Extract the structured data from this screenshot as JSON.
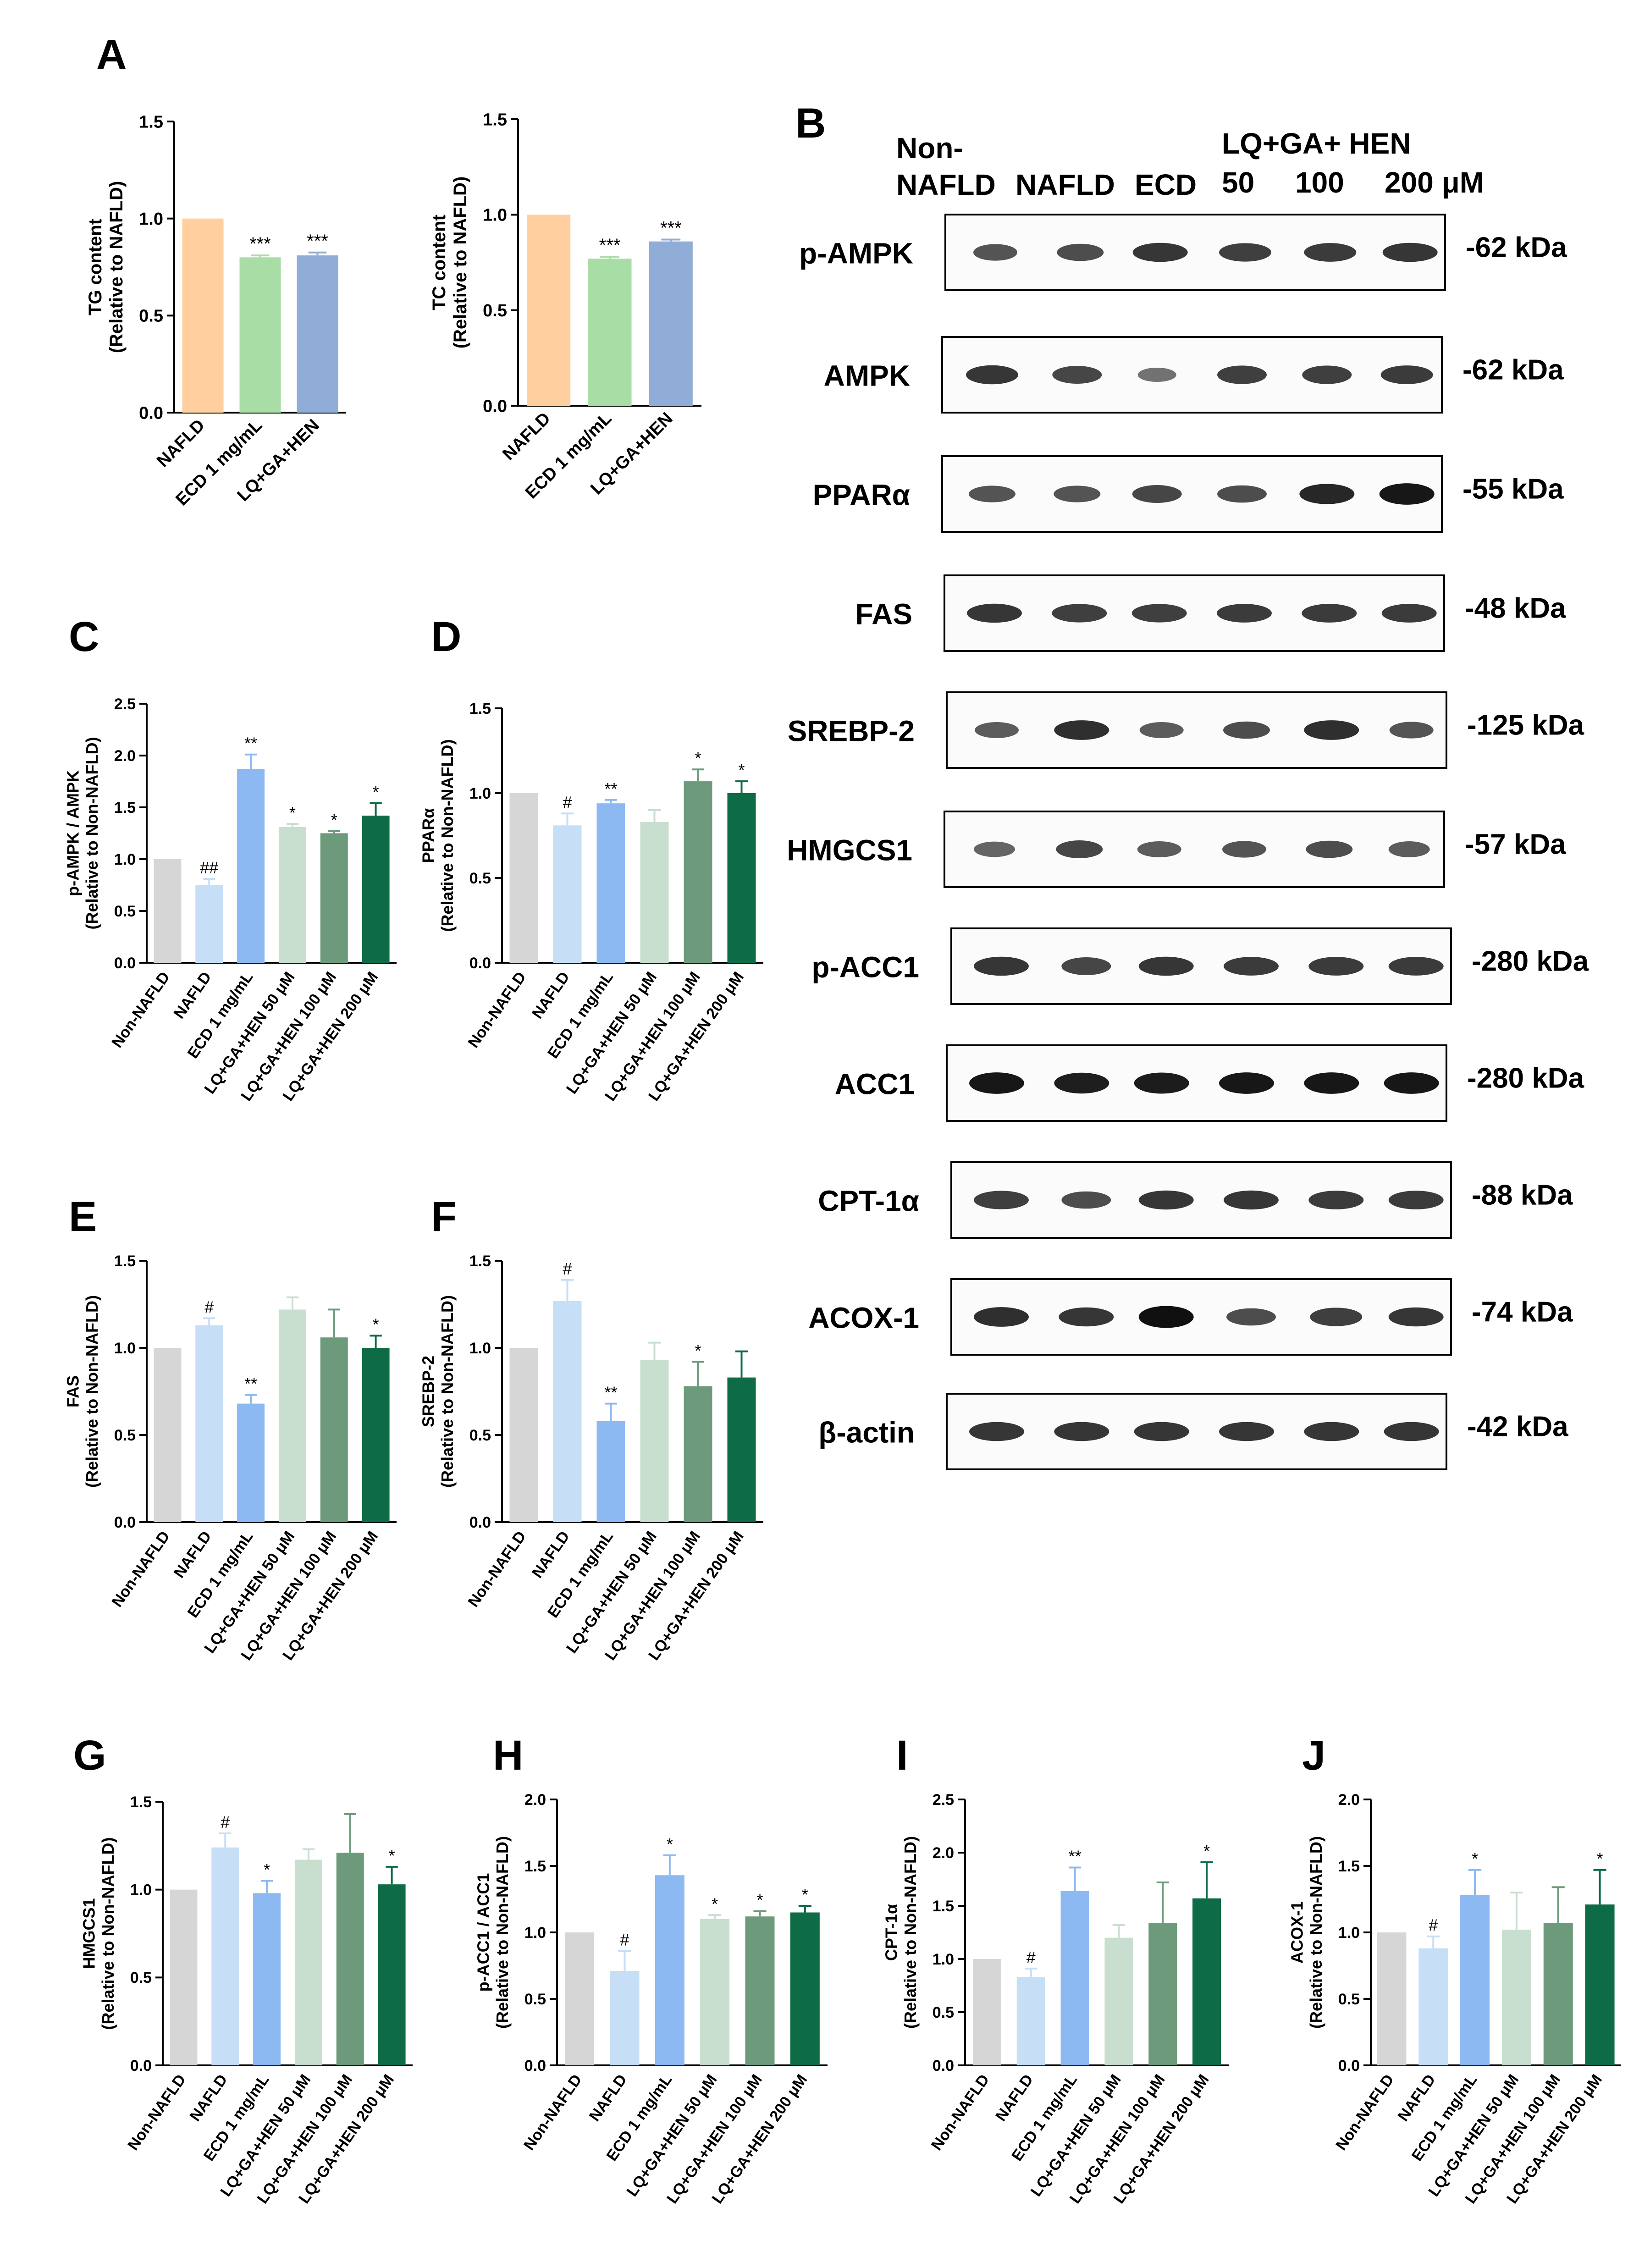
{
  "figure": {
    "background": "#ffffff"
  },
  "colors": {
    "nafld_orange": "#FFCF9F",
    "ecd_green_light": "#A9DDA6",
    "lq_blue": "#8FADD6",
    "non": "#D6D6D6",
    "nafld": "#C7DEF7",
    "ecd": "#8DB9F2",
    "lq50": "#C8DFCF",
    "lq100": "#6E9A7C",
    "lq200": "#0D6B45",
    "band": "#101010"
  },
  "panel_labels": {
    "A": "A",
    "B": "B",
    "C": "C",
    "D": "D",
    "E": "E",
    "F": "F",
    "G": "G",
    "H": "H",
    "I": "I",
    "J": "J"
  },
  "chart_data": [
    {
      "id": "A1",
      "panel": "A",
      "type": "bar",
      "ylabel": [
        "TG content",
        "(Relative to NAFLD)"
      ],
      "ylim": [
        0,
        1.5
      ],
      "yticks": [
        0,
        0.5,
        1.0,
        1.5
      ],
      "ytick_labels": [
        "0.0",
        "0.5",
        "1.0",
        "1.5"
      ],
      "categories": [
        "NAFLD",
        "ECD 1 mg/mL",
        "LQ+GA+HEN"
      ],
      "values": [
        1.0,
        0.8,
        0.81
      ],
      "errors": [
        0,
        0.01,
        0.015
      ],
      "annotations": [
        "",
        "***",
        "***"
      ],
      "color_keys": [
        "nafld_orange",
        "ecd_green_light",
        "lq_blue"
      ]
    },
    {
      "id": "A2",
      "panel": "A",
      "type": "bar",
      "ylabel": [
        "TC content",
        "(Relative to NAFLD)"
      ],
      "ylim": [
        0,
        1.5
      ],
      "yticks": [
        0,
        0.5,
        1.0,
        1.5
      ],
      "ytick_labels": [
        "0.0",
        "0.5",
        "1.0",
        "1.5"
      ],
      "categories": [
        "NAFLD",
        "ECD 1 mg/mL",
        "LQ+GA+HEN"
      ],
      "values": [
        1.0,
        0.77,
        0.86
      ],
      "errors": [
        0,
        0.01,
        0.01
      ],
      "annotations": [
        "",
        "***",
        "***"
      ],
      "color_keys": [
        "nafld_orange",
        "ecd_green_light",
        "lq_blue"
      ]
    },
    {
      "id": "C",
      "panel": "C",
      "type": "bar",
      "ylabel": [
        "p-AMPK / AMPK",
        "(Relative to Non-NAFLD)"
      ],
      "ylim": [
        0,
        2.5
      ],
      "yticks": [
        0,
        0.5,
        1.0,
        1.5,
        2.0,
        2.5
      ],
      "ytick_labels": [
        "0.0",
        "0.5",
        "1.0",
        "1.5",
        "2.0",
        "2.5"
      ],
      "categories": [
        "Non-NAFLD",
        "NAFLD",
        "ECD 1 mg/mL",
        "LQ+GA+HEN 50 μM",
        "LQ+GA+HEN 100 μM",
        "LQ+GA+HEN 200 μM"
      ],
      "values": [
        1.0,
        0.75,
        1.87,
        1.31,
        1.25,
        1.42
      ],
      "errors": [
        0,
        0.06,
        0.14,
        0.03,
        0.02,
        0.12
      ],
      "annotations": [
        "",
        "##",
        "**",
        "*",
        "*",
        "*"
      ],
      "color_keys": [
        "non",
        "nafld",
        "ecd",
        "lq50",
        "lq100",
        "lq200"
      ]
    },
    {
      "id": "D",
      "panel": "D",
      "type": "bar",
      "ylabel": [
        "PPARα",
        "(Relative to Non-NAFLD)"
      ],
      "ylim": [
        0,
        1.5
      ],
      "yticks": [
        0,
        0.5,
        1.0,
        1.5
      ],
      "ytick_labels": [
        "0.0",
        "0.5",
        "1.0",
        "1.5"
      ],
      "categories": [
        "Non-NAFLD",
        "NAFLD",
        "ECD 1 mg/mL",
        "LQ+GA+HEN 50 μM",
        "LQ+GA+HEN 100 μM",
        "LQ+GA+HEN 200 μM"
      ],
      "values": [
        1.0,
        0.81,
        0.94,
        0.83,
        1.07,
        1.0
      ],
      "errors": [
        0,
        0.07,
        0.02,
        0.07,
        0.07,
        0.07
      ],
      "annotations": [
        "",
        "#",
        "**",
        "",
        "*",
        "*"
      ],
      "color_keys": [
        "non",
        "nafld",
        "ecd",
        "lq50",
        "lq100",
        "lq200"
      ]
    },
    {
      "id": "E",
      "panel": "E",
      "type": "bar",
      "ylabel": [
        "FAS",
        "(Relative to Non-NAFLD)"
      ],
      "ylim": [
        0,
        1.5
      ],
      "yticks": [
        0,
        0.5,
        1.0,
        1.5
      ],
      "ytick_labels": [
        "0.0",
        "0.5",
        "1.0",
        "1.5"
      ],
      "categories": [
        "Non-NAFLD",
        "NAFLD",
        "ECD 1 mg/mL",
        "LQ+GA+HEN 50 μM",
        "LQ+GA+HEN 100 μM",
        "LQ+GA+HEN 200 μM"
      ],
      "values": [
        1.0,
        1.13,
        0.68,
        1.22,
        1.06,
        1.0
      ],
      "errors": [
        0,
        0.04,
        0.05,
        0.07,
        0.16,
        0.07
      ],
      "annotations": [
        "",
        "#",
        "**",
        "",
        "",
        "*"
      ],
      "color_keys": [
        "non",
        "nafld",
        "ecd",
        "lq50",
        "lq100",
        "lq200"
      ]
    },
    {
      "id": "F",
      "panel": "F",
      "type": "bar",
      "ylabel": [
        "SREBP-2",
        "(Relative to Non-NAFLD)"
      ],
      "ylim": [
        0,
        1.5
      ],
      "yticks": [
        0,
        0.5,
        1.0,
        1.5
      ],
      "ytick_labels": [
        "0.0",
        "0.5",
        "1.0",
        "1.5"
      ],
      "categories": [
        "Non-NAFLD",
        "NAFLD",
        "ECD 1 mg/mL",
        "LQ+GA+HEN 50 μM",
        "LQ+GA+HEN 100 μM",
        "LQ+GA+HEN 200 μM"
      ],
      "values": [
        1.0,
        1.27,
        0.58,
        0.93,
        0.78,
        0.83
      ],
      "errors": [
        0,
        0.12,
        0.1,
        0.1,
        0.14,
        0.15
      ],
      "annotations": [
        "",
        "#",
        "**",
        "",
        "*",
        ""
      ],
      "color_keys": [
        "non",
        "nafld",
        "ecd",
        "lq50",
        "lq100",
        "lq200"
      ]
    },
    {
      "id": "G",
      "panel": "G",
      "type": "bar",
      "ylabel": [
        "HMGCS1",
        "(Relative to Non-NAFLD)"
      ],
      "ylim": [
        0,
        1.5
      ],
      "yticks": [
        0,
        0.5,
        1.0,
        1.5
      ],
      "ytick_labels": [
        "0.0",
        "0.5",
        "1.0",
        "1.5"
      ],
      "categories": [
        "Non-NAFLD",
        "NAFLD",
        "ECD 1 mg/mL",
        "LQ+GA+HEN 50 μM",
        "LQ+GA+HEN 100 μM",
        "LQ+GA+HEN 200 μM"
      ],
      "values": [
        1.0,
        1.24,
        0.98,
        1.17,
        1.21,
        1.03
      ],
      "errors": [
        0,
        0.08,
        0.07,
        0.06,
        0.22,
        0.1
      ],
      "annotations": [
        "",
        "#",
        "*",
        "",
        "",
        "*"
      ],
      "color_keys": [
        "non",
        "nafld",
        "ecd",
        "lq50",
        "lq100",
        "lq200"
      ]
    },
    {
      "id": "H",
      "panel": "H",
      "type": "bar",
      "ylabel": [
        "p-ACC1 / ACC1",
        "(Relative to Non-NAFLD)"
      ],
      "ylim": [
        0,
        2.0
      ],
      "yticks": [
        0,
        0.5,
        1.0,
        1.5,
        2.0
      ],
      "ytick_labels": [
        "0.0",
        "0.5",
        "1.0",
        "1.5",
        "2.0"
      ],
      "categories": [
        "Non-NAFLD",
        "NAFLD",
        "ECD 1 mg/mL",
        "LQ+GA+HEN 50 μM",
        "LQ+GA+HEN 100 μM",
        "LQ+GA+HEN 200 μM"
      ],
      "values": [
        1.0,
        0.71,
        1.43,
        1.1,
        1.12,
        1.15
      ],
      "errors": [
        0,
        0.15,
        0.15,
        0.03,
        0.04,
        0.05
      ],
      "annotations": [
        "",
        "#",
        "*",
        "*",
        "*",
        "*"
      ],
      "color_keys": [
        "non",
        "nafld",
        "ecd",
        "lq50",
        "lq100",
        "lq200"
      ]
    },
    {
      "id": "I",
      "panel": "I",
      "type": "bar",
      "ylabel": [
        "CPT-1α",
        "(Relative to Non-NAFLD)"
      ],
      "ylim": [
        0,
        2.5
      ],
      "yticks": [
        0,
        0.5,
        1.0,
        1.5,
        2.0,
        2.5
      ],
      "ytick_labels": [
        "0.0",
        "0.5",
        "1.0",
        "1.5",
        "2.0",
        "2.5"
      ],
      "categories": [
        "Non-NAFLD",
        "NAFLD",
        "ECD 1 mg/mL",
        "LQ+GA+HEN 50 μM",
        "LQ+GA+HEN 100 μM",
        "LQ+GA+HEN 200 μM"
      ],
      "values": [
        1.0,
        0.83,
        1.64,
        1.2,
        1.34,
        1.57
      ],
      "errors": [
        0,
        0.08,
        0.22,
        0.12,
        0.38,
        0.34
      ],
      "annotations": [
        "",
        "#",
        "**",
        "",
        "",
        "*"
      ],
      "color_keys": [
        "non",
        "nafld",
        "ecd",
        "lq50",
        "lq100",
        "lq200"
      ]
    },
    {
      "id": "J",
      "panel": "J",
      "type": "bar",
      "ylabel": [
        "ACOX-1",
        "(Relative to Non-NAFLD)"
      ],
      "ylim": [
        0,
        2.0
      ],
      "yticks": [
        0,
        0.5,
        1.0,
        1.5,
        2.0
      ],
      "ytick_labels": [
        "0.0",
        "0.5",
        "1.0",
        "1.5",
        "2.0"
      ],
      "categories": [
        "Non-NAFLD",
        "NAFLD",
        "ECD 1 mg/mL",
        "LQ+GA+HEN 50 μM",
        "LQ+GA+HEN 100 μM",
        "LQ+GA+HEN 200 μM"
      ],
      "values": [
        1.0,
        0.88,
        1.28,
        1.02,
        1.07,
        1.21
      ],
      "errors": [
        0,
        0.09,
        0.19,
        0.28,
        0.27,
        0.26
      ],
      "annotations": [
        "",
        "#",
        "*",
        "",
        "",
        "*"
      ],
      "color_keys": [
        "non",
        "nafld",
        "ecd",
        "lq50",
        "lq100",
        "lq200"
      ]
    }
  ],
  "western_blot": {
    "header": {
      "non": "Non-",
      "nafld_line2": "NAFLD",
      "nafld": "NAFLD",
      "ecd": "ECD",
      "lq_group": "LQ+GA+ HEN",
      "d50": "50",
      "d100": "100",
      "d200": "200 μM"
    },
    "rows": [
      {
        "protein": "p-AMPK",
        "mw": "-62 kDa",
        "bands": [
          [
            0.55,
            0.8
          ],
          [
            0.6,
            0.85
          ],
          [
            0.75,
            1.0
          ],
          [
            0.7,
            0.95
          ],
          [
            0.72,
            0.95
          ],
          [
            0.75,
            1.0
          ]
        ]
      },
      {
        "protein": "AMPK",
        "mw": "-62 kDa",
        "bands": [
          [
            0.75,
            0.95
          ],
          [
            0.65,
            0.9
          ],
          [
            0.35,
            0.7
          ],
          [
            0.7,
            0.9
          ],
          [
            0.7,
            0.9
          ],
          [
            0.72,
            0.95
          ]
        ]
      },
      {
        "protein": "PPARα",
        "mw": "-55 kDa",
        "bands": [
          [
            0.55,
            0.85
          ],
          [
            0.55,
            0.85
          ],
          [
            0.65,
            0.9
          ],
          [
            0.6,
            0.9
          ],
          [
            0.85,
            1.0
          ],
          [
            0.95,
            1.0
          ]
        ]
      },
      {
        "protein": "FAS",
        "mw": "-48 kDa",
        "bands": [
          [
            0.75,
            1.0
          ],
          [
            0.7,
            1.0
          ],
          [
            0.7,
            1.0
          ],
          [
            0.72,
            1.0
          ],
          [
            0.72,
            1.0
          ],
          [
            0.72,
            1.0
          ]
        ]
      },
      {
        "protein": "SREBP-2",
        "mw": "-125 kDa",
        "bands": [
          [
            0.5,
            0.8
          ],
          [
            0.8,
            1.0
          ],
          [
            0.5,
            0.8
          ],
          [
            0.6,
            0.85
          ],
          [
            0.8,
            1.0
          ],
          [
            0.55,
            0.8
          ]
        ]
      },
      {
        "protein": "HMGCS1",
        "mw": "-57 kDa",
        "bands": [
          [
            0.45,
            0.75
          ],
          [
            0.65,
            0.85
          ],
          [
            0.5,
            0.8
          ],
          [
            0.55,
            0.8
          ],
          [
            0.6,
            0.85
          ],
          [
            0.5,
            0.75
          ]
        ]
      },
      {
        "protein": "p-ACC1",
        "mw": "-280 kDa",
        "bands": [
          [
            0.75,
            1.0
          ],
          [
            0.65,
            0.9
          ],
          [
            0.75,
            1.0
          ],
          [
            0.72,
            1.0
          ],
          [
            0.72,
            1.0
          ],
          [
            0.72,
            1.0
          ]
        ]
      },
      {
        "protein": "ACC1",
        "mw": "-280 kDa",
        "bands": [
          [
            0.95,
            1.0
          ],
          [
            0.9,
            1.0
          ],
          [
            0.92,
            1.0
          ],
          [
            0.95,
            1.0
          ],
          [
            0.95,
            1.0
          ],
          [
            0.95,
            1.0
          ]
        ]
      },
      {
        "protein": "CPT-1α",
        "mw": "-88 kDa",
        "bands": [
          [
            0.7,
            1.0
          ],
          [
            0.6,
            0.9
          ],
          [
            0.75,
            1.0
          ],
          [
            0.75,
            1.0
          ],
          [
            0.72,
            1.0
          ],
          [
            0.72,
            1.0
          ]
        ]
      },
      {
        "protein": "ACOX-1",
        "mw": "-74 kDa",
        "bands": [
          [
            0.8,
            1.0
          ],
          [
            0.75,
            1.0
          ],
          [
            1.0,
            1.0
          ],
          [
            0.6,
            0.9
          ],
          [
            0.7,
            0.95
          ],
          [
            0.75,
            1.0
          ]
        ]
      },
      {
        "protein": "β-actin",
        "mw": "-42 kDa",
        "bands": [
          [
            0.75,
            1.0
          ],
          [
            0.75,
            1.0
          ],
          [
            0.75,
            1.0
          ],
          [
            0.75,
            1.0
          ],
          [
            0.75,
            1.0
          ],
          [
            0.75,
            1.0
          ]
        ]
      }
    ]
  }
}
